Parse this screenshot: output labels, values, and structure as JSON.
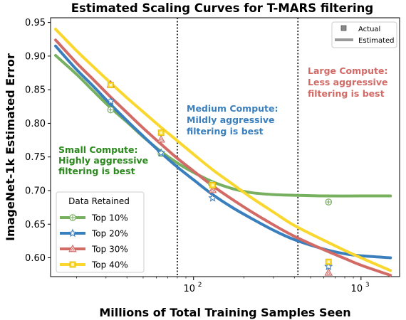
{
  "chart_data": {
    "type": "line",
    "title": "Estimated Scaling Curves for T-MARS filtering",
    "xlabel": "Millions of Total Training Samples Seen",
    "ylabel": "ImageNet-1k Estimated Error",
    "x_scale": "log",
    "xlim": [
      14,
      1700
    ],
    "ylim": [
      0.572,
      0.957
    ],
    "x_ticks": [
      {
        "value": 100,
        "base": "10",
        "exp": "2"
      },
      {
        "value": 1000,
        "base": "10",
        "exp": "3"
      }
    ],
    "y_ticks": [
      {
        "value": 0.6,
        "label": "0.60"
      },
      {
        "value": 0.65,
        "label": "0.65"
      },
      {
        "value": 0.7,
        "label": "0.70"
      },
      {
        "value": 0.75,
        "label": "0.75"
      },
      {
        "value": 0.8,
        "label": "0.80"
      },
      {
        "value": 0.85,
        "label": "0.85"
      },
      {
        "value": 0.9,
        "label": "0.90"
      },
      {
        "value": 0.95,
        "label": "0.95"
      }
    ],
    "vlines": [
      80,
      420
    ],
    "grid": false,
    "legend": {
      "title": "Data Retained",
      "placement": "lower-left"
    },
    "style_legend": {
      "placement": "top-right",
      "actual_label": "Actual",
      "estimated_label": "Estimated"
    },
    "series": [
      {
        "name": "Top 10%",
        "color": "#77b05e",
        "marker": "circle-plus",
        "actual": [
          [
            32,
            0.82
          ],
          [
            64,
            0.755
          ],
          [
            128,
            0.71
          ],
          [
            640,
            0.683
          ]
        ],
        "curve": [
          [
            15,
            0.901
          ],
          [
            20,
            0.873
          ],
          [
            25,
            0.849
          ],
          [
            32,
            0.823
          ],
          [
            40,
            0.802
          ],
          [
            50,
            0.78
          ],
          [
            64,
            0.758
          ],
          [
            80,
            0.741
          ],
          [
            100,
            0.727
          ],
          [
            130,
            0.713
          ],
          [
            170,
            0.703
          ],
          [
            220,
            0.697
          ],
          [
            300,
            0.694
          ],
          [
            400,
            0.693
          ],
          [
            600,
            0.692
          ],
          [
            1000,
            0.692
          ],
          [
            1500,
            0.692
          ]
        ]
      },
      {
        "name": "Top 20%",
        "color": "#3a7fbd",
        "marker": "star",
        "actual": [
          [
            32,
            0.833
          ],
          [
            64,
            0.756
          ],
          [
            130,
            0.689
          ],
          [
            640,
            0.587
          ]
        ],
        "curve": [
          [
            15,
            0.915
          ],
          [
            20,
            0.88
          ],
          [
            25,
            0.856
          ],
          [
            32,
            0.828
          ],
          [
            40,
            0.804
          ],
          [
            50,
            0.781
          ],
          [
            64,
            0.756
          ],
          [
            80,
            0.735
          ],
          [
            100,
            0.716
          ],
          [
            130,
            0.694
          ],
          [
            170,
            0.675
          ],
          [
            220,
            0.659
          ],
          [
            300,
            0.641
          ],
          [
            400,
            0.627
          ],
          [
            600,
            0.613
          ],
          [
            800,
            0.606
          ],
          [
            1000,
            0.603
          ],
          [
            1500,
            0.6
          ]
        ]
      },
      {
        "name": "Top 30%",
        "color": "#d26a66",
        "marker": "triangle",
        "actual": [
          [
            32,
            0.858
          ],
          [
            64,
            0.776
          ],
          [
            130,
            0.701
          ],
          [
            640,
            0.578
          ]
        ],
        "curve": [
          [
            15,
            0.924
          ],
          [
            20,
            0.89
          ],
          [
            25,
            0.866
          ],
          [
            32,
            0.839
          ],
          [
            40,
            0.816
          ],
          [
            50,
            0.793
          ],
          [
            64,
            0.769
          ],
          [
            80,
            0.748
          ],
          [
            100,
            0.729
          ],
          [
            130,
            0.707
          ],
          [
            170,
            0.687
          ],
          [
            220,
            0.669
          ],
          [
            300,
            0.649
          ],
          [
            400,
            0.632
          ],
          [
            600,
            0.612
          ],
          [
            800,
            0.599
          ],
          [
            1000,
            0.589
          ],
          [
            1500,
            0.574
          ]
        ]
      },
      {
        "name": "Top 40%",
        "color": "#f9d72e",
        "marker": "square",
        "actual": [
          [
            32,
            0.857
          ],
          [
            64,
            0.786
          ],
          [
            130,
            0.708
          ],
          [
            640,
            0.594
          ]
        ],
        "curve": [
          [
            15,
            0.94
          ],
          [
            20,
            0.908
          ],
          [
            25,
            0.885
          ],
          [
            32,
            0.86
          ],
          [
            40,
            0.838
          ],
          [
            50,
            0.817
          ],
          [
            64,
            0.794
          ],
          [
            80,
            0.774
          ],
          [
            100,
            0.754
          ],
          [
            130,
            0.731
          ],
          [
            170,
            0.71
          ],
          [
            220,
            0.69
          ],
          [
            300,
            0.668
          ],
          [
            400,
            0.648
          ],
          [
            600,
            0.626
          ],
          [
            800,
            0.611
          ],
          [
            1000,
            0.6
          ],
          [
            1500,
            0.581
          ]
        ]
      }
    ],
    "annotations": [
      {
        "name": "small",
        "color": "#2b8a1d",
        "lines": [
          "Small Compute:",
          "Highly aggressive",
          "filtering is best"
        ]
      },
      {
        "name": "medium",
        "color": "#3a7fbd",
        "lines": [
          "Medium Compute:",
          "Mildly aggressive",
          "filtering is best"
        ]
      },
      {
        "name": "large",
        "color": "#d26a66",
        "lines": [
          "Large Compute:",
          "Less aggressive",
          "filtering is best"
        ]
      }
    ]
  }
}
